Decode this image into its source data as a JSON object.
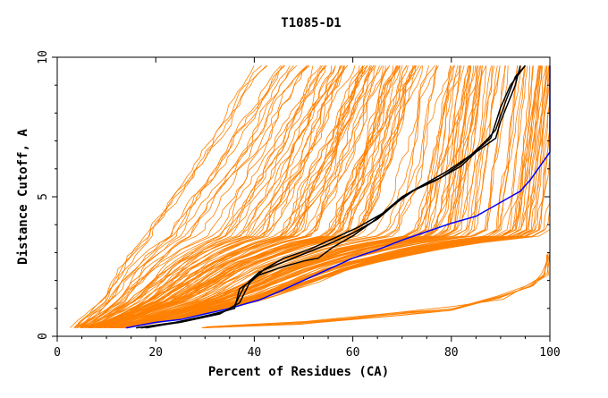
{
  "chart_data": {
    "type": "line",
    "title": "T1085-D1",
    "xlabel": "Percent of Residues (CA)",
    "ylabel": "Distance Cutoff, A",
    "xlim": [
      0,
      100
    ],
    "ylim": [
      0,
      10
    ],
    "x_ticks": [
      "0",
      "20",
      "40",
      "60",
      "80",
      "100"
    ],
    "y_ticks": [
      "0",
      "5",
      "10"
    ],
    "grid": false,
    "legend": "none",
    "colors": {
      "models": "#ff8000",
      "highlight": "#000000",
      "reference": "#0000ff",
      "axes": "#000000"
    },
    "series": [
      {
        "color": "#0000ff",
        "points": [
          [
            14,
            0.3
          ],
          [
            20,
            0.5
          ],
          [
            25,
            0.6
          ],
          [
            30,
            0.8
          ],
          [
            35,
            1.0
          ],
          [
            41,
            1.3
          ],
          [
            45,
            1.6
          ],
          [
            50,
            2.0
          ],
          [
            55,
            2.4
          ],
          [
            60,
            2.8
          ],
          [
            65,
            3.1
          ],
          [
            70,
            3.45
          ],
          [
            75,
            3.75
          ],
          [
            80,
            4.05
          ],
          [
            85,
            4.3
          ],
          [
            88,
            4.6
          ],
          [
            91,
            4.9
          ],
          [
            94,
            5.2
          ],
          [
            96,
            5.6
          ],
          [
            98,
            6.1
          ],
          [
            100,
            6.6
          ],
          [
            100,
            9.7
          ]
        ]
      },
      {
        "color": "#000000",
        "points": [
          [
            17,
            0.3
          ],
          [
            25,
            0.5
          ],
          [
            33,
            0.8
          ],
          [
            36,
            1.1
          ],
          [
            38,
            1.8
          ],
          [
            41,
            2.3
          ],
          [
            45,
            2.6
          ],
          [
            50,
            2.95
          ],
          [
            55,
            3.3
          ],
          [
            60,
            3.7
          ],
          [
            65,
            4.2
          ],
          [
            69,
            4.8
          ],
          [
            73,
            5.3
          ],
          [
            78,
            5.7
          ],
          [
            82,
            6.2
          ],
          [
            86,
            6.8
          ],
          [
            88,
            7.1
          ],
          [
            90,
            8.2
          ],
          [
            92,
            9.0
          ],
          [
            95,
            9.7
          ]
        ]
      },
      {
        "color": "#000000",
        "points": [
          [
            16,
            0.3
          ],
          [
            24,
            0.5
          ],
          [
            32,
            0.8
          ],
          [
            36,
            1.0
          ],
          [
            37,
            1.7
          ],
          [
            41,
            2.2
          ],
          [
            45,
            2.45
          ],
          [
            50,
            2.7
          ],
          [
            53,
            2.8
          ],
          [
            56,
            3.2
          ],
          [
            60,
            3.6
          ],
          [
            64,
            4.1
          ],
          [
            68,
            4.7
          ],
          [
            72,
            5.2
          ],
          [
            77,
            5.6
          ],
          [
            82,
            6.1
          ],
          [
            85,
            6.6
          ],
          [
            89,
            7.1
          ],
          [
            90,
            7.7
          ],
          [
            93,
            9.0
          ],
          [
            94,
            9.7
          ]
        ]
      },
      {
        "color": "#000000",
        "points": [
          [
            18,
            0.3
          ],
          [
            26,
            0.55
          ],
          [
            34,
            0.9
          ],
          [
            37,
            1.2
          ],
          [
            39,
            1.9
          ],
          [
            42,
            2.4
          ],
          [
            46,
            2.8
          ],
          [
            51,
            3.1
          ],
          [
            56,
            3.5
          ],
          [
            61,
            3.9
          ],
          [
            66,
            4.4
          ],
          [
            70,
            5.0
          ],
          [
            74,
            5.4
          ],
          [
            79,
            5.9
          ],
          [
            84,
            6.5
          ],
          [
            87,
            7.0
          ],
          [
            89,
            7.4
          ],
          [
            91,
            8.4
          ],
          [
            93,
            9.3
          ],
          [
            95,
            9.7
          ]
        ]
      }
    ],
    "model_band": {
      "color": "#ff8000",
      "count": 150,
      "low_edge": [
        [
          3,
          0.3
        ],
        [
          8,
          1.2
        ],
        [
          12,
          2.5
        ],
        [
          17,
          3.8
        ],
        [
          23,
          5.2
        ],
        [
          30,
          6.8
        ],
        [
          35,
          8.3
        ],
        [
          41,
          9.7
        ]
      ],
      "high_edge": [
        [
          14,
          0.3
        ],
        [
          24,
          0.6
        ],
        [
          34,
          1.0
        ],
        [
          42,
          1.3
        ],
        [
          52,
          1.9
        ],
        [
          62,
          2.5
        ],
        [
          72,
          2.9
        ],
        [
          80,
          3.2
        ],
        [
          88,
          3.4
        ],
        [
          94,
          3.5
        ],
        [
          98,
          3.6
        ],
        [
          100,
          3.8
        ],
        [
          100,
          9.7
        ]
      ],
      "bottom_cluster": [
        [
          30,
          0.3
        ],
        [
          50,
          0.5
        ],
        [
          70,
          0.8
        ],
        [
          80,
          1.0
        ],
        [
          90,
          1.4
        ],
        [
          96,
          1.8
        ],
        [
          99,
          2.2
        ],
        [
          100,
          3.0
        ]
      ]
    }
  }
}
